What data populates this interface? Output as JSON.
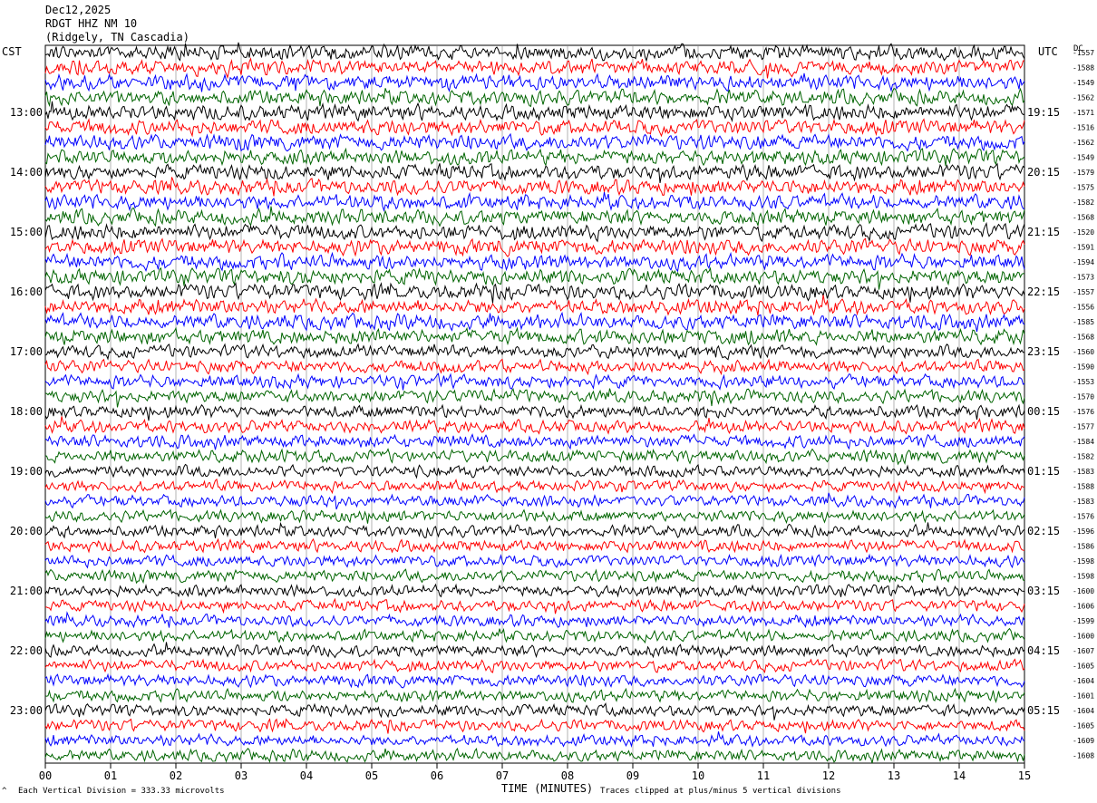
{
  "header": {
    "date": "Dec12,2025",
    "station": "RDGT HHZ NM 10",
    "location": "(Ridgely, TN Cascadia)"
  },
  "left_zone_label": "CST",
  "right_zone_label": "UTC",
  "dc_label": "DC",
  "footer": {
    "scale_note": "Each Vertical Division =  333.33 microvolts",
    "clip_note": "Traces clipped at plus/minus 5 vertical divisions",
    "corner_mark": "^"
  },
  "chart_data": {
    "type": "line",
    "title": "",
    "xlabel": "TIME (MINUTES)",
    "ylabel": "",
    "xlim": [
      0,
      15
    ],
    "x_ticks": [
      "00",
      "01",
      "02",
      "03",
      "04",
      "05",
      "06",
      "07",
      "08",
      "09",
      "10",
      "11",
      "12",
      "13",
      "14",
      "15"
    ],
    "left_time_labels": [
      {
        "row": 4,
        "label": "13:00"
      },
      {
        "row": 8,
        "label": "14:00"
      },
      {
        "row": 12,
        "label": "15:00"
      },
      {
        "row": 16,
        "label": "16:00"
      },
      {
        "row": 20,
        "label": "17:00"
      },
      {
        "row": 24,
        "label": "18:00"
      },
      {
        "row": 28,
        "label": "19:00"
      },
      {
        "row": 32,
        "label": "20:00"
      },
      {
        "row": 36,
        "label": "21:00"
      },
      {
        "row": 40,
        "label": "22:00"
      },
      {
        "row": 44,
        "label": "23:00"
      }
    ],
    "right_time_labels": [
      {
        "row": 4,
        "label": "19:15"
      },
      {
        "row": 8,
        "label": "20:15"
      },
      {
        "row": 12,
        "label": "21:15"
      },
      {
        "row": 16,
        "label": "22:15"
      },
      {
        "row": 20,
        "label": "23:15"
      },
      {
        "row": 24,
        "label": "00:15"
      },
      {
        "row": 28,
        "label": "01:15"
      },
      {
        "row": 32,
        "label": "02:15"
      },
      {
        "row": 36,
        "label": "03:15"
      },
      {
        "row": 40,
        "label": "04:15"
      },
      {
        "row": 44,
        "label": "05:15"
      }
    ],
    "trace_colors": [
      "#000000",
      "#ff0000",
      "#0000ff",
      "#006400"
    ],
    "dc_offsets": [
      -1557,
      -1588,
      -1549,
      -1562,
      -1571,
      -1516,
      -1562,
      -1549,
      -1579,
      -1575,
      -1582,
      -1568,
      -1520,
      -1591,
      -1594,
      -1573,
      -1557,
      -1556,
      -1585,
      -1568,
      -1560,
      -1590,
      -1553,
      -1570,
      -1576,
      -1577,
      -1584,
      -1582,
      -1583,
      -1588,
      -1583,
      -1576,
      -1596,
      -1586,
      -1598,
      -1598,
      -1600,
      -1606,
      -1599,
      -1600,
      -1607,
      -1605,
      -1604,
      -1601,
      -1604,
      -1605,
      -1609,
      -1608
    ],
    "grid": true
  }
}
